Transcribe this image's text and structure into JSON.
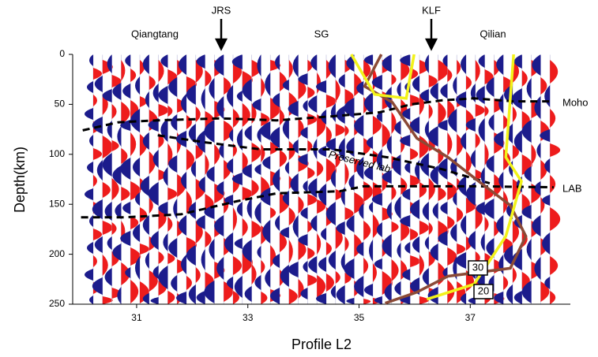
{
  "chart_data": {
    "type": "line",
    "x_label": "Profile L2",
    "y_label": "Depth(km)",
    "xlim": [
      29.85,
      38.8
    ],
    "ylim": [
      0,
      250
    ],
    "y_inverted": true,
    "xticks": [
      31,
      33,
      35,
      37
    ],
    "yticks": [
      0,
      50,
      100,
      150,
      200,
      250
    ],
    "annotations": [
      "Qiangtang",
      "JRS",
      "SG",
      "KLF",
      "Qilian",
      "Moho",
      "LAB",
      "Preserved lab",
      "30",
      "20"
    ],
    "lines": [
      {
        "color": "#000000",
        "dashed": true,
        "x": [
          30.03,
          30.67,
          31.38,
          32.52,
          33.52,
          34.51,
          35.37,
          35.94,
          36.5,
          37.07,
          37.78,
          38.5
        ],
        "y": [
          76,
          68,
          66,
          64,
          66,
          62,
          58,
          50,
          46,
          44,
          47,
          47
        ]
      },
      {
        "color": "#000000",
        "dashed": true,
        "x": [
          31.38,
          32.23,
          33.23,
          34.51,
          35.51,
          36.5,
          37.35
        ],
        "y": [
          81,
          88,
          95,
          95,
          103,
          115,
          129
        ]
      },
      {
        "color": "#000000",
        "dashed": true,
        "x": [
          30.0,
          30.81,
          31.8,
          32.8,
          33.52,
          34.65,
          35.08,
          35.94,
          37.07,
          38.5
        ],
        "y": [
          163,
          163,
          160,
          147,
          139,
          137,
          132,
          132,
          132,
          133
        ]
      },
      {
        "color": "#8b4a36",
        "dashed": false,
        "x": [
          35.4,
          35.1,
          35.6,
          36.04,
          36.6,
          37.15,
          37.72,
          38.0,
          37.72,
          36.6,
          36.04,
          35.47
        ],
        "y": [
          0,
          32,
          48,
          84,
          103,
          127,
          151,
          182,
          214,
          222,
          238,
          249
        ]
      },
      {
        "color": "#f2f21a",
        "dashed": false,
        "x": [
          34.86,
          35.28,
          35.85,
          35.99
        ],
        "y": [
          0,
          40,
          44,
          0
        ]
      },
      {
        "color": "#f2f21a",
        "dashed": false,
        "x": [
          37.78,
          37.64,
          37.92,
          37.64,
          37.07,
          36.22
        ],
        "y": [
          0,
          103,
          127,
          182,
          230,
          245
        ]
      }
    ]
  }
}
